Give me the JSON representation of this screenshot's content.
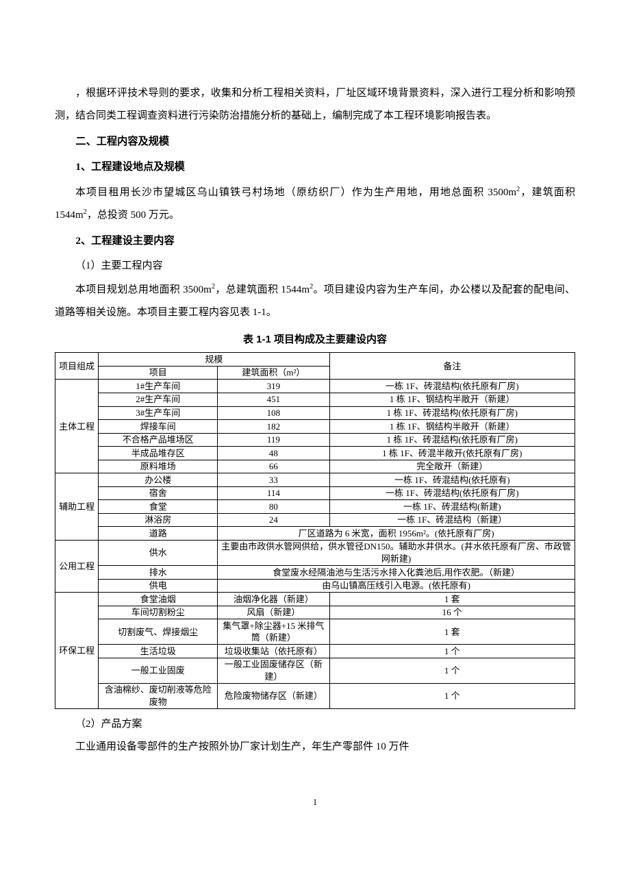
{
  "intro": {
    "p1": "，根据环评技术导则的要求，收集和分析工程相关资料，厂址区域环境背景资料，深入进行工程分析和影响预测，结合同类工程调查资料进行污染防治措施分析的基础上，编制完成了本工程环境影响报告表。"
  },
  "section2": {
    "title": "二、工程内容及规模",
    "sub1": {
      "title": "1、工程建设地点及规模",
      "p1_a": "本项目租用长沙市望城区乌山镇铁弓村场地（原纺织厂）作为生产用地，用地总面积 3500m",
      "p1_b": "，建筑面积 1544m",
      "p1_c": "，总投资 500 万元。"
    },
    "sub2": {
      "title": "2、工程建设主要内容",
      "item1": "（1）主要工程内容",
      "p1_a": "本项目规划总用地面积 3500m",
      "p1_b": "，总建筑面积 1544m",
      "p1_c": "。项目建设内容为生产车间，办公楼以及配套的配电间、道路等相关设施。本项目主要工程内容见表 1-1。",
      "item2": "（2）产品方案",
      "p2": "工业通用设备零部件的生产按照外协厂家计划生产，年生产零部件 10 万件"
    }
  },
  "table": {
    "caption": "表 1-1  项目构成及主要建设内容",
    "header": {
      "col1": "项目组成",
      "col2": "规模",
      "col2a": "项目",
      "col2b": "建筑面积（m²）",
      "col3": "备注"
    },
    "groups": {
      "main": "主体工程",
      "aux": "辅助工程",
      "public": "公用工程",
      "env": "环保工程"
    },
    "rows": {
      "r1": {
        "item": "1#生产车间",
        "area": "319",
        "note": "一栋 1F、砖混结构(依托原有厂房)"
      },
      "r2": {
        "item": "2#生产车间",
        "area": "451",
        "note": "1 栋 1F、钢结构半敞开（新建）"
      },
      "r3": {
        "item": "3#生产车间",
        "area": "108",
        "note": "1 栋 1F、砖混结构(依托原有厂房)"
      },
      "r4": {
        "item": "焊接车间",
        "area": "182",
        "note": "1 栋 1F、钢结构半敞开（新建）"
      },
      "r5": {
        "item": "不合格产品堆场区",
        "area": "119",
        "note": "1 栋 1F、砖混结构(依托原有厂房)"
      },
      "r6": {
        "item": "半成品堆存区",
        "area": "48",
        "note": "1 栋 1F、砖混半敞开(依托原有厂房)"
      },
      "r7": {
        "item": "原料堆场",
        "area": "66",
        "note": "完全敞开（新建）"
      },
      "r8": {
        "item": "办公楼",
        "area": "33",
        "note": "一栋 1F、砖混结构(依托原有)"
      },
      "r9": {
        "item": "宿舍",
        "area": "114",
        "note": "一栋 1F、砖混结构(依托原有厂房)"
      },
      "r10": {
        "item": "食堂",
        "area": "80",
        "note": "一栋 1F、砖混结构(新建)"
      },
      "r11": {
        "item": "淋浴房",
        "area": "24",
        "note": "一栋 1F、砖混结构（新建）"
      },
      "r12": {
        "item": "道路",
        "note": "厂区道路为 6 米宽，面积 1956m²。(依托原有厂房)"
      },
      "r13": {
        "item": "供水",
        "note": "主要由市政供水管网供给，供水管径DN150。辅助水井供水。(井水依托原有厂房、市政管网新建)"
      },
      "r14": {
        "item": "排水",
        "note": "食堂废水经隔油池与生活污水排入化粪池后,用作农肥。（新建）"
      },
      "r15": {
        "item": "供电",
        "note": "由乌山镇高压线引入电源。(依托原有)"
      },
      "r16": {
        "item": "食堂油烟",
        "area": "油烟净化器（新建）",
        "note": "1 套"
      },
      "r17": {
        "item": "车间切割粉尘",
        "area": "风扇（新建）",
        "note": "16 个"
      },
      "r18": {
        "item": "切割废气、焊接烟尘",
        "area": "集气罩+除尘器+15 米排气筒（新建）",
        "note": "1 套"
      },
      "r19": {
        "item": "生活垃圾",
        "area": "垃圾收集站（依托原有）",
        "note": "1 个"
      },
      "r20": {
        "item": "一般工业固废",
        "area": "一般工业固废储存区（新建）",
        "note": "1 个"
      },
      "r21": {
        "item": "含油棉纱、废切削液等危险废物",
        "area": "危险废物储存区（新建）",
        "note": "1 个"
      }
    }
  },
  "pageNum": "1"
}
